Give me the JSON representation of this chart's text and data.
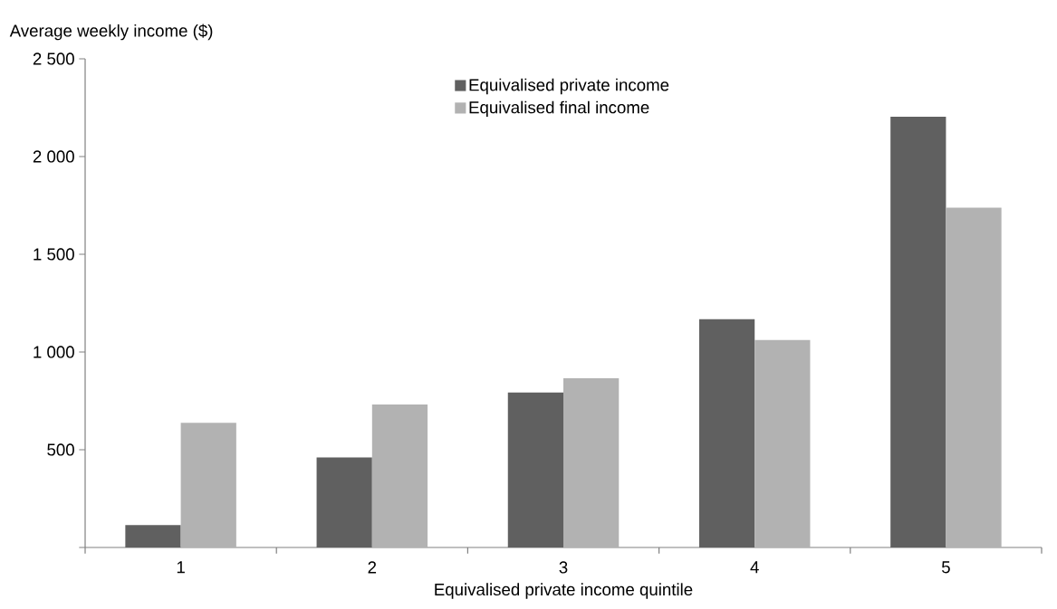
{
  "chart_data": {
    "type": "bar",
    "xlabel": "Equivalised private income quintile",
    "ylabel": "Average weekly income ($)",
    "categories": [
      "1",
      "2",
      "3",
      "4",
      "5"
    ],
    "series": [
      {
        "name": "Equivalised private income",
        "color": "#606060",
        "values": [
          115,
          461,
          793,
          1168,
          2204
        ]
      },
      {
        "name": "Equivalised final income",
        "color": "#b2b2b2",
        "values": [
          638,
          732,
          866,
          1061,
          1738
        ]
      }
    ],
    "ylim": [
      0,
      2500
    ],
    "yticks": [
      {
        "value": 0,
        "label": null
      },
      500,
      {
        "value": 1000,
        "label": "1 000"
      },
      {
        "value": 1500,
        "label": "1 500"
      },
      {
        "value": 2000,
        "label": "2 000"
      },
      {
        "value": 2500,
        "label": "2 500"
      }
    ],
    "grid": false,
    "legend": "top"
  }
}
